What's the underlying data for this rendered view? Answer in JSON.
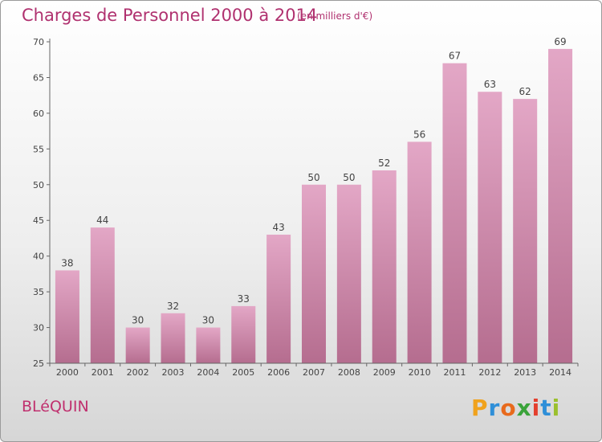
{
  "chart_data": {
    "type": "bar",
    "title": "Charges de Personnel 2000 à 2014",
    "subtitle": "(en milliers d'€)",
    "categories": [
      "2000",
      "2001",
      "2002",
      "2003",
      "2004",
      "2005",
      "2006",
      "2007",
      "2008",
      "2009",
      "2010",
      "2011",
      "2012",
      "2013",
      "2014"
    ],
    "values": [
      38,
      44,
      30,
      32,
      30,
      33,
      43,
      50,
      50,
      52,
      56,
      67,
      63,
      62,
      69
    ],
    "ylim": [
      25,
      70
    ],
    "yticks": [
      25,
      30,
      35,
      40,
      45,
      50,
      55,
      60,
      65,
      70
    ],
    "xlabel": "",
    "ylabel": "",
    "grid": false,
    "bar_color": "#d9879f",
    "bar_color_light": "#e3a7c6",
    "bar_color_dark": "#b56d8f"
  },
  "commune": "BLéQUIN",
  "brand": {
    "letters": [
      "P",
      "r",
      "o",
      "x",
      "i",
      "t",
      "i"
    ],
    "colors": [
      "#f0a21c",
      "#2f8fd8",
      "#e86a1c",
      "#3aa33a",
      "#e43f2e",
      "#2f8fd8",
      "#9bc02e"
    ]
  }
}
